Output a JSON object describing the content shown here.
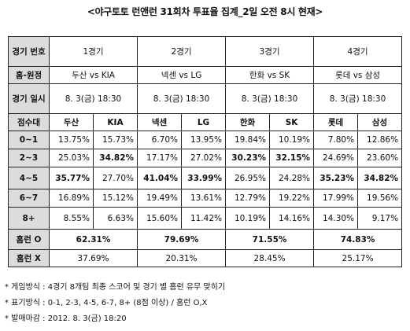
{
  "title": "<야구토토 런앤런 31회차 투표율 집계_2일 오전 8시 현재>",
  "header": {
    "game_label": "경기 번호",
    "games": [
      "1경기",
      "2경기",
      "3경기",
      "4경기"
    ],
    "home_away_label": "홈-원정",
    "matchups": [
      "두산 vs KIA",
      "넥센 vs LG",
      "한화 vs SK",
      "롯데 vs 삼성"
    ],
    "date_label": "경기 일시",
    "dates": [
      "8. 3(금) 18:30",
      "8. 3(금) 18:30",
      "8. 3(금) 18:30",
      "8. 3(금) 18:30"
    ],
    "score_label": "점수대",
    "teams": [
      "두산",
      "KIA",
      "넥센",
      "LG",
      "한화",
      "SK",
      "롯데",
      "삼성"
    ]
  },
  "rows": [
    {
      "label": "0~1",
      "values": [
        "13.75%",
        "15.73%",
        "6.70%",
        "13.95%",
        "19.84%",
        "10.19%",
        "7.80%",
        "12.86%"
      ]
    },
    {
      "label": "2~3",
      "values": [
        "25.03%",
        "34.82%",
        "17.17%",
        "27.02%",
        "30.23%",
        "32.15%",
        "24.69%",
        "23.60%"
      ]
    },
    {
      "label": "4~5",
      "values": [
        "35.77%",
        "27.70%",
        "41.04%",
        "33.99%",
        "26.95%",
        "24.28%",
        "35.23%",
        "34.82%"
      ]
    },
    {
      "label": "6~7",
      "values": [
        "16.89%",
        "15.12%",
        "19.49%",
        "13.61%",
        "12.79%",
        "19.22%",
        "17.99%",
        "19.56%"
      ]
    },
    {
      "label": "8+",
      "values": [
        "8.55%",
        "6.63%",
        "15.60%",
        "11.42%",
        "10.19%",
        "14.16%",
        "14.30%",
        "9.17%"
      ]
    }
  ],
  "homerun_o": {
    "label": "홈런 O",
    "values": [
      "62.31%",
      "79.69%",
      "71.55%",
      "74.83%"
    ]
  },
  "homerun_x": {
    "label": "홈런 X",
    "values": [
      "37.69%",
      "20.31%",
      "28.45%",
      "25.17%"
    ]
  },
  "notes": [
    "* 게임방식 : 4경기 8개팀 최종 스코어 및 경기 별 홈런 유무 맞히기",
    "* 표기방식 : 0-1, 2-3, 4-5, 6-7, 8+ (8점 이상) / 홈런 O,X",
    "* 발매마감 : 2012. 8. 3(금) 18:20"
  ]
}
